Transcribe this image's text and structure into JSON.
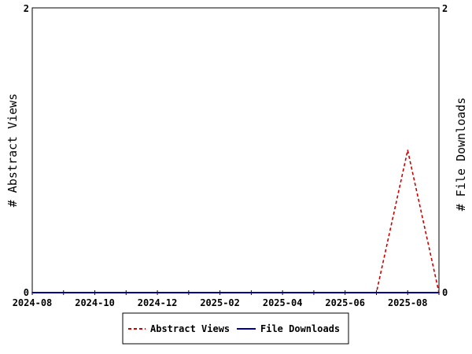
{
  "chart_data": {
    "type": "line",
    "x": [
      "2024-08",
      "2024-09",
      "2024-10",
      "2024-11",
      "2024-12",
      "2025-01",
      "2025-02",
      "2025-03",
      "2025-04",
      "2025-05",
      "2025-06",
      "2025-07",
      "2025-08",
      "2025-09"
    ],
    "x_tick_labels": [
      "2024-08",
      "2024-10",
      "2024-12",
      "2025-02",
      "2025-04",
      "2025-06",
      "2025-08"
    ],
    "series": [
      {
        "name": "Abstract Views",
        "axis": "left",
        "color": "#cc0000",
        "style": "dashed",
        "values": [
          0,
          0,
          0,
          0,
          0,
          0,
          0,
          0,
          0,
          0,
          0,
          0,
          1,
          0
        ]
      },
      {
        "name": "File Downloads",
        "axis": "right",
        "color": "#000099",
        "style": "solid",
        "values": [
          0,
          0,
          0,
          0,
          0,
          0,
          0,
          0,
          0,
          0,
          0,
          0,
          0,
          0
        ]
      }
    ],
    "ylabel": "# Abstract Views",
    "ylabel_right": "# File Downloads",
    "ylim": [
      0,
      2
    ],
    "ylim_right": [
      0,
      2
    ],
    "y_ticks": [
      "0",
      "2"
    ],
    "y_ticks_right": [
      "0",
      "2"
    ],
    "grid": false,
    "legend_position": "bottom"
  }
}
